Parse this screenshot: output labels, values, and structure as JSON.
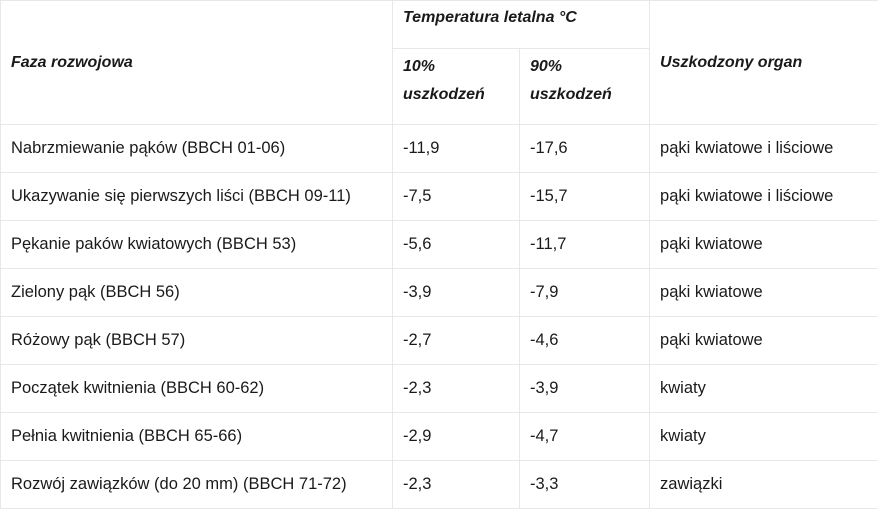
{
  "table": {
    "headers": {
      "phase": "Faza rozwojowa",
      "temperature": "Temperatura letalna °C",
      "damage_10": "10% uszkodzeń",
      "damage_90": "90% uszkodzeń",
      "organ": "Uszkodzony organ"
    },
    "rows": [
      {
        "phase": "Nabrzmiewanie pąków (BBCH 01-06)",
        "t10": "-11,9",
        "t90": "-17,6",
        "organ": "pąki kwiatowe i liściowe"
      },
      {
        "phase": "Ukazywanie się pierwszych liści (BBCH 09-11)",
        "t10": "-7,5",
        "t90": "-15,7",
        "organ": "pąki kwiatowe i liściowe"
      },
      {
        "phase": "Pękanie paków kwiatowych (BBCH 53)",
        "t10": "-5,6",
        "t90": "-11,7",
        "organ": "pąki kwiatowe"
      },
      {
        "phase": "Zielony pąk (BBCH 56)",
        "t10": "-3,9",
        "t90": "-7,9",
        "organ": "pąki kwiatowe"
      },
      {
        "phase": "Różowy pąk (BBCH 57)",
        "t10": "-2,7",
        "t90": "-4,6",
        "organ": "pąki kwiatowe"
      },
      {
        "phase": "Początek kwitnienia (BBCH 60-62)",
        "t10": "-2,3",
        "t90": "-3,9",
        "organ": "kwiaty"
      },
      {
        "phase": "Pełnia kwitnienia (BBCH 65-66)",
        "t10": "-2,9",
        "t90": "-4,7",
        "organ": "kwiaty"
      },
      {
        "phase": "Rozwój zawiązków (do 20 mm) (BBCH 71-72)",
        "t10": "-2,3",
        "t90": "-3,3",
        "organ": "zawiązki"
      }
    ]
  }
}
